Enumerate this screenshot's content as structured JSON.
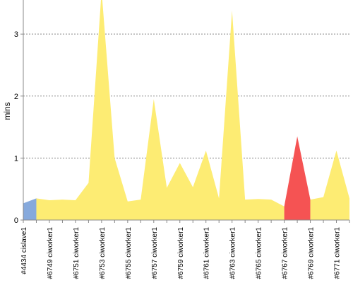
{
  "chart_data": {
    "type": "area",
    "ylabel": "mins",
    "ylim": [
      0,
      3.55
    ],
    "yticks": [
      "0",
      "1",
      "2",
      "3"
    ],
    "grid": "horizontal dashed",
    "categories": [
      "#4434 cislave1",
      "",
      "#6749 ciworker1",
      "",
      "#6751 ciworker1",
      "",
      "#6753 ciworker1",
      "",
      "#6755 ciworker1",
      "",
      "#6757 ciworker1",
      "",
      "#6759 ciworker1",
      "",
      "#6761 ciworker1",
      "",
      "#6763 ciworker1",
      "",
      "#6765 ciworker1",
      "",
      "#6767 ciworker1",
      "",
      "#6769 ciworker1",
      "",
      "#6771 ciworker1",
      ""
    ],
    "values": [
      0.27,
      0.35,
      0.32,
      0.33,
      0.32,
      0.6,
      3.7,
      1.0,
      0.3,
      0.33,
      1.95,
      0.52,
      0.92,
      0.53,
      1.12,
      0.35,
      3.38,
      0.33,
      0.34,
      0.33,
      0.22,
      1.35,
      0.33,
      0.37,
      1.12,
      0.35
    ],
    "segments": [
      {
        "from": 0,
        "to": 1,
        "status": "stable",
        "color": "#86a9dc"
      },
      {
        "from": 1,
        "to": 20,
        "status": "unstable",
        "color": "#fdec73"
      },
      {
        "from": 20,
        "to": 22,
        "status": "failed",
        "color": "#f55353"
      },
      {
        "from": 22,
        "to": 25,
        "status": "unstable",
        "color": "#fdec73"
      }
    ],
    "axis_color": "#888888",
    "grid_color": "#888888"
  }
}
